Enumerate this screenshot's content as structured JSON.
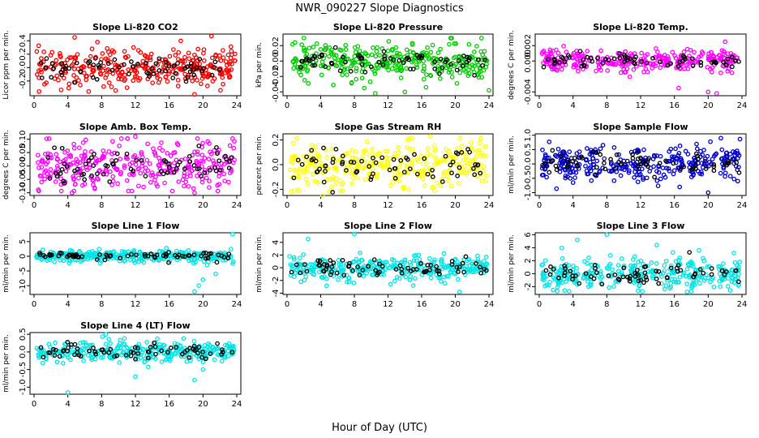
{
  "title": "NWR_090227  Slope Diagnostics",
  "xlabel": "Hour of Day (UTC)",
  "colors": {
    "flag": "#000000"
  },
  "chart_data": [
    {
      "type": "scatter",
      "title": "Slope Li-820 CO2",
      "ylabel": "Licor ppm per min.",
      "color": "#ff0000",
      "xlim": [
        0,
        24
      ],
      "ylim": [
        -0.42,
        0.5
      ],
      "xticks": [
        0,
        4,
        8,
        12,
        16,
        20,
        24
      ],
      "yticks": [
        "-0.2",
        "0.0",
        "0.2",
        "0.4"
      ],
      "ytick_values": [
        -0.2,
        0,
        0.2,
        0.4
      ],
      "spread": 0.13,
      "outliers": [
        [
          4.8,
          0.45
        ],
        [
          19,
          -0.4
        ],
        [
          21,
          0.47
        ],
        [
          7.5,
          0.38
        ],
        [
          11,
          -0.3
        ]
      ],
      "seed": 1
    },
    {
      "type": "scatter",
      "title": "Slope Li-820 Pressure",
      "ylabel": "kPa per min.",
      "color": "#00cc00",
      "xlim": [
        0,
        24
      ],
      "ylim": [
        -0.045,
        0.035
      ],
      "xticks": [
        0,
        4,
        8,
        12,
        16,
        20,
        24
      ],
      "yticks": [
        "-0.04",
        "-0.02",
        "0.00",
        "0.02"
      ],
      "ytick_values": [
        -0.04,
        -0.02,
        0,
        0.02
      ],
      "spread": 0.011,
      "outliers": [
        [
          10.5,
          -0.042
        ],
        [
          24,
          -0.038
        ],
        [
          2,
          0.03
        ],
        [
          14,
          -0.04
        ]
      ],
      "seed": 2
    },
    {
      "type": "scatter",
      "title": "Slope Li-820 Temp.",
      "ylabel": "degrees C per min.",
      "color": "#ff00ff",
      "xlim": [
        0,
        24
      ],
      "ylim": [
        -0.0045,
        0.0035
      ],
      "xticks": [
        0,
        4,
        8,
        12,
        16,
        20,
        24
      ],
      "yticks": [
        "-0.004",
        "0.000",
        "0.002"
      ],
      "ytick_values": [
        -0.004,
        0,
        0.002
      ],
      "spread": 0.0007,
      "outliers": [
        [
          20,
          -0.004
        ],
        [
          16.5,
          -0.0035
        ],
        [
          21,
          -0.0042
        ],
        [
          22,
          0.0025
        ]
      ],
      "seed": 3
    },
    {
      "type": "scatter",
      "title": "Slope Amb. Box Temp.",
      "ylabel": "degrees C per min.",
      "color": "#ff00ff",
      "xlim": [
        0,
        24
      ],
      "ylim": [
        -0.11,
        0.12
      ],
      "xticks": [
        0,
        4,
        8,
        12,
        16,
        20,
        24
      ],
      "yticks": [
        "-0.10",
        "-0.05",
        "0.00",
        "0.05",
        "0.10"
      ],
      "ytick_values": [
        -0.1,
        -0.05,
        0,
        0.05,
        0.1
      ],
      "spread": 0.045,
      "outliers": [
        [
          19,
          -0.1
        ],
        [
          4.5,
          -0.1
        ],
        [
          12,
          0.11
        ]
      ],
      "seed": 4
    },
    {
      "type": "scatter",
      "title": "Slope Gas Stream RH",
      "ylabel": "percent per min.",
      "color": "#ffff00",
      "xlim": [
        0,
        24
      ],
      "ylim": [
        -0.25,
        0.25
      ],
      "xticks": [
        0,
        4,
        8,
        12,
        16,
        20,
        24
      ],
      "yticks": [
        "-0.2",
        "0.0",
        "0.2"
      ],
      "ytick_values": [
        -0.2,
        0,
        0.2
      ],
      "spread": 0.1,
      "outliers": [
        [
          5,
          -0.22
        ],
        [
          0.5,
          -0.22
        ],
        [
          17,
          0.23
        ],
        [
          4.2,
          -0.25
        ]
      ],
      "seed": 5
    },
    {
      "type": "scatter",
      "title": "Slope Sample Flow",
      "ylabel": "ml/min per min.",
      "color": "#0000cc",
      "xlim": [
        0,
        24
      ],
      "ylim": [
        -1.1,
        1.05
      ],
      "xticks": [
        0,
        4,
        8,
        12,
        16,
        20,
        24
      ],
      "yticks": [
        "-1.0",
        "-0.5",
        "0.0",
        "0.5",
        "1.0"
      ],
      "ytick_values": [
        -1,
        -0.5,
        0,
        0.5,
        1
      ],
      "spread": 0.3,
      "outliers": [
        [
          21.5,
          0.9
        ],
        [
          20,
          -1.0
        ],
        [
          4,
          -0.65
        ],
        [
          23.5,
          -0.6
        ]
      ],
      "seed": 6
    },
    {
      "type": "scatter",
      "title": "Slope Line 1 Flow",
      "ylabel": "ml/min per min.",
      "color": "#00e5e5",
      "xlim": [
        0,
        24
      ],
      "ylim": [
        -13,
        8
      ],
      "xticks": [
        0,
        4,
        8,
        12,
        16,
        20,
        24
      ],
      "yticks": [
        "-10",
        "-5",
        "0",
        "5"
      ],
      "ytick_values": [
        -10,
        -5,
        0,
        5
      ],
      "spread": 0.9,
      "outliers": [
        [
          19,
          -12
        ],
        [
          19.5,
          -10
        ],
        [
          20,
          -8
        ],
        [
          21.5,
          -6
        ],
        [
          23.5,
          7.5
        ],
        [
          20.5,
          -3
        ]
      ],
      "seed": 7
    },
    {
      "type": "scatter",
      "title": "Slope Line 2 Flow",
      "ylabel": "ml/min per min.",
      "color": "#00e5e5",
      "xlim": [
        0,
        24
      ],
      "ylim": [
        -4.2,
        5.5
      ],
      "xticks": [
        0,
        4,
        8,
        12,
        16,
        20,
        24
      ],
      "yticks": [
        "-4",
        "-2",
        "0",
        "2",
        "4"
      ],
      "ytick_values": [
        -4,
        -2,
        0,
        2,
        4
      ],
      "spread": 1.0,
      "outliers": [
        [
          8,
          5.3
        ],
        [
          20.5,
          -3.8
        ],
        [
          2.5,
          4.5
        ],
        [
          15,
          -2.8
        ]
      ],
      "seed": 8
    },
    {
      "type": "scatter",
      "title": "Slope Line 3 Flow",
      "ylabel": "ml/min per min.",
      "color": "#00e5e5",
      "xlim": [
        0,
        24
      ],
      "ylim": [
        -3.2,
        6.3
      ],
      "xticks": [
        0,
        4,
        8,
        12,
        16,
        20,
        24
      ],
      "yticks": [
        "-2",
        "0",
        "2",
        "4",
        "6"
      ],
      "ytick_values": [
        -2,
        0,
        2,
        4,
        6
      ],
      "spread": 1.2,
      "outliers": [
        [
          8,
          6.0
        ],
        [
          4.5,
          5.2
        ],
        [
          17.5,
          -2.8
        ],
        [
          3,
          -2.6
        ]
      ],
      "seed": 9
    },
    {
      "type": "scatter",
      "title": "Slope Line 4 (LT) Flow",
      "ylabel": "ml/min per min.",
      "color": "#00e5e5",
      "xlim": [
        0,
        24
      ],
      "ylim": [
        -1.2,
        0.55
      ],
      "xticks": [
        0,
        4,
        8,
        12,
        16,
        20,
        24
      ],
      "yticks": [
        "-1.0",
        "-0.5",
        "0.0",
        "0.5"
      ],
      "ytick_values": [
        -1,
        -0.5,
        0,
        0.5
      ],
      "spread": 0.15,
      "outliers": [
        [
          4,
          -1.15
        ],
        [
          12,
          -0.7
        ],
        [
          19,
          -0.8
        ],
        [
          8.5,
          0.5
        ],
        [
          20,
          -0.5
        ]
      ],
      "seed": 10
    }
  ]
}
